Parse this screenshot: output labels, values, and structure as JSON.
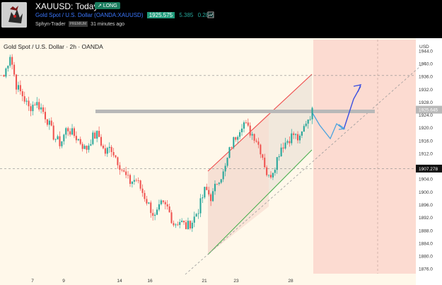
{
  "header": {
    "title": "XAUUSD: Today!",
    "badge": "LONG",
    "symbol_name": "Gold Spot / U.S. Dollar",
    "symbol_source": "(OANDA:XAUUSD)",
    "price": "1925.575",
    "change": "5.385",
    "change_pct": "0.28%",
    "author": "Sphyn-Trader",
    "author_badge": "PREMIUM",
    "time_ago": "31 minutes ago"
  },
  "chart_data": {
    "type": "candlestick",
    "title": "Gold Spot / U.S. Dollar · 2h · OANDA",
    "currency": "USD",
    "x_ticks": [
      "7",
      "9",
      "14",
      "16",
      "21",
      "23",
      "28"
    ],
    "y_ticks": [
      1944,
      1940,
      1936,
      1932,
      1928,
      1924,
      1920,
      1916,
      1912,
      1908,
      1904,
      1900,
      1896,
      1892,
      1888,
      1884,
      1880,
      1876
    ],
    "ylim": [
      1874.5,
      1947.5
    ],
    "price_labels": [
      {
        "value": 1925.645,
        "text": "1925.645",
        "color": "#ffffff",
        "bg": "#b8b8b8"
      },
      {
        "value": 1907.278,
        "text": "1907.278",
        "color": "#ffffff",
        "bg": "#111111"
      }
    ],
    "horizontal_lines": [
      1936.3,
      1907.3
    ],
    "resistance_band": [
      1925.1,
      1926.3
    ],
    "colors": {
      "up": "#26a69a",
      "down": "#ef5350",
      "background": "#fff8ea",
      "forecast_zone": "#fbd3cb"
    },
    "candles_close_path": [
      1936,
      1943,
      1933,
      1930,
      1926,
      1928,
      1926,
      1922,
      1917,
      1915,
      1920,
      1918,
      1916,
      1913,
      1917,
      1918,
      1912,
      1914,
      1910,
      1906,
      1903,
      1904,
      1900,
      1896,
      1892,
      1896,
      1895,
      1890,
      1891,
      1889,
      1891,
      1895,
      1901,
      1898,
      1904,
      1906,
      1914,
      1918,
      1922,
      1919,
      1917,
      1912,
      1904,
      1908,
      1914,
      1916,
      1918,
      1916,
      1922,
      1925
    ]
  }
}
